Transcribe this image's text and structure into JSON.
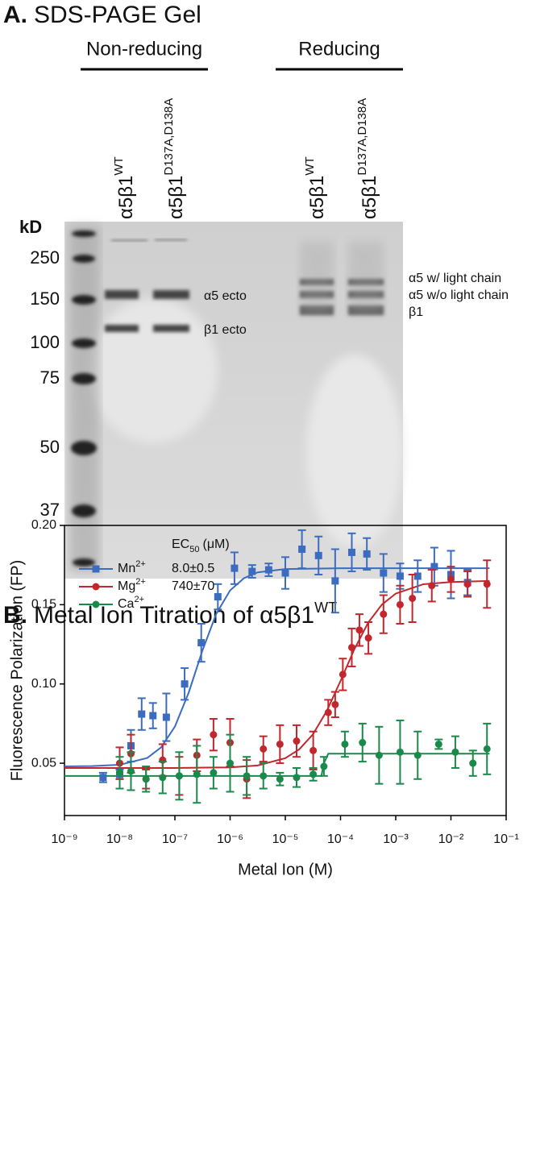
{
  "gel": {
    "panel_label": "A.",
    "title": "SDS-PAGE Gel",
    "groups": [
      "Non-reducing",
      "Reducing"
    ],
    "lanes": [
      {
        "name": "α5β1",
        "superscript": "WT"
      },
      {
        "name": "α5β1",
        "superscript": "D137A,D138A"
      },
      {
        "name": "α5β1",
        "superscript": "WT"
      },
      {
        "name": "α5β1",
        "superscript": "D137A,D138A"
      }
    ],
    "kd_label": "kD",
    "markers": [
      250,
      150,
      100,
      75,
      50,
      37
    ],
    "band_labels_left": [
      "α5 ecto",
      "β1 ecto"
    ],
    "band_labels_right": [
      "α5 w/ light chain",
      "α5 w/o light chain",
      "β1"
    ]
  },
  "chart_data": {
    "type": "scatter",
    "panel_label": "B.",
    "title": "Metal Ion Titration of α5β1",
    "title_superscript": "WT",
    "x_label": "Metal Ion (M)",
    "y_label": "Fluorescence Polarization (FP)",
    "log_x": true,
    "xlim": [
      1e-09,
      0.1
    ],
    "ylim": [
      0.017,
      0.2
    ],
    "xticks": [
      {
        "value": 1e-09,
        "label": "10⁻⁹"
      },
      {
        "value": 1e-08,
        "label": "10⁻⁸"
      },
      {
        "value": 1e-07,
        "label": "10⁻⁷"
      },
      {
        "value": 1e-06,
        "label": "10⁻⁶"
      },
      {
        "value": 1e-05,
        "label": "10⁻⁵"
      },
      {
        "value": 0.0001,
        "label": "10⁻⁴"
      },
      {
        "value": 0.001,
        "label": "10⁻³"
      },
      {
        "value": 0.01,
        "label": "10⁻²"
      },
      {
        "value": 0.1,
        "label": "10⁻¹"
      }
    ],
    "yticks": [
      0.05,
      {
        "value": 0.1,
        "label": "0.10"
      },
      0.15,
      {
        "value": 0.2,
        "label": "0.20"
      }
    ],
    "legend_title": {
      "text": "EC",
      "subscript": "50",
      "unit": "(μM)"
    },
    "series": [
      {
        "name": "Mn",
        "charge": "2+",
        "ec50": "8.0±0.5",
        "color": "#3b6cc0",
        "marker": "square",
        "x": [
          5e-09,
          1e-08,
          1.6e-08,
          2.5e-08,
          4e-08,
          7e-08,
          1.5e-07,
          3e-07,
          6e-07,
          1.2e-06,
          2.5e-06,
          5e-06,
          1e-05,
          2e-05,
          4e-05,
          8e-05,
          0.00016,
          0.0003,
          0.0006,
          0.0012,
          0.0025,
          0.005,
          0.01,
          0.02
        ],
        "values": [
          0.041,
          0.043,
          0.061,
          0.081,
          0.08,
          0.079,
          0.1,
          0.126,
          0.155,
          0.173,
          0.171,
          0.172,
          0.17,
          0.185,
          0.181,
          0.165,
          0.183,
          0.182,
          0.17,
          0.168,
          0.168,
          0.174,
          0.169,
          0.164
        ],
        "errors": [
          0.003,
          0.003,
          0.01,
          0.01,
          0.008,
          0.015,
          0.01,
          0.012,
          0.008,
          0.01,
          0.004,
          0.004,
          0.01,
          0.012,
          0.012,
          0.02,
          0.012,
          0.01,
          0.012,
          0.008,
          0.01,
          0.012,
          0.015,
          0.008
        ],
        "fit": {
          "x": [
            1e-09,
            3.16e-09,
            1e-08,
            3.16e-08,
            5.62e-08,
            1e-07,
            1.78e-07,
            3.16e-07,
            5.62e-07,
            1e-06,
            1.78e-06,
            3.16e-06,
            1e-05,
            0.0001,
            0.001,
            0.05
          ],
          "values": [
            0.048,
            0.0482,
            0.049,
            0.0533,
            0.06,
            0.0731,
            0.0946,
            0.1212,
            0.1443,
            0.159,
            0.1667,
            0.1704,
            0.1725,
            0.173,
            0.173,
            0.173
          ]
        }
      },
      {
        "name": "Mg",
        "charge": "2+",
        "ec50": "740±70",
        "color": "#c1272d",
        "marker": "circle",
        "x": [
          1e-08,
          1.6e-08,
          3e-08,
          6e-08,
          1.2e-07,
          2.5e-07,
          5e-07,
          1e-06,
          2e-06,
          4e-06,
          8e-06,
          1.6e-05,
          3.2e-05,
          6e-05,
          8e-05,
          0.00011,
          0.00016,
          0.00022,
          0.00032,
          0.0006,
          0.0012,
          0.002,
          0.0045,
          0.01,
          0.02,
          0.045
        ],
        "values": [
          0.05,
          0.056,
          0.04,
          0.052,
          0.042,
          0.055,
          0.068,
          0.063,
          0.04,
          0.059,
          0.062,
          0.064,
          0.058,
          0.082,
          0.087,
          0.106,
          0.123,
          0.134,
          0.129,
          0.144,
          0.15,
          0.154,
          0.162,
          0.166,
          0.163,
          0.163
        ],
        "errors": [
          0.01,
          0.012,
          0.006,
          0.01,
          0.012,
          0.01,
          0.01,
          0.015,
          0.012,
          0.008,
          0.012,
          0.01,
          0.012,
          0.008,
          0.008,
          0.01,
          0.012,
          0.01,
          0.01,
          0.012,
          0.012,
          0.015,
          0.01,
          0.008,
          0.008,
          0.015
        ],
        "fit": {
          "x": [
            1e-09,
            1e-07,
            1e-06,
            3.16e-06,
            1e-05,
            1.78e-05,
            3.16e-05,
            5.62e-05,
            0.0001,
            0.000178,
            0.000316,
            0.000562,
            0.001,
            0.00316,
            0.01,
            0.05
          ],
          "values": [
            0.047,
            0.047,
            0.0474,
            0.0486,
            0.0532,
            0.0587,
            0.0682,
            0.0829,
            0.1019,
            0.1219,
            0.1386,
            0.1501,
            0.157,
            0.1629,
            0.1643,
            0.165
          ]
        }
      },
      {
        "name": "Ca",
        "charge": "2+",
        "color": "#1a8a4a",
        "marker": "circle",
        "x": [
          1e-08,
          1.6e-08,
          3e-08,
          6e-08,
          1.2e-07,
          2.5e-07,
          5e-07,
          1e-06,
          2e-06,
          4e-06,
          8e-06,
          1.6e-05,
          3.2e-05,
          5e-05,
          0.00012,
          0.00025,
          0.0005,
          0.0012,
          0.0025,
          0.006,
          0.012,
          0.025,
          0.045
        ],
        "values": [
          0.044,
          0.045,
          0.04,
          0.041,
          0.042,
          0.043,
          0.044,
          0.05,
          0.042,
          0.042,
          0.04,
          0.041,
          0.043,
          0.048,
          0.062,
          0.063,
          0.055,
          0.057,
          0.055,
          0.062,
          0.057,
          0.05,
          0.059
        ],
        "errors": [
          0.01,
          0.012,
          0.008,
          0.01,
          0.015,
          0.018,
          0.01,
          0.018,
          0.012,
          0.008,
          0.004,
          0.006,
          0.004,
          0.006,
          0.008,
          0.012,
          0.018,
          0.02,
          0.015,
          0.003,
          0.01,
          0.008,
          0.016
        ],
        "fit": {
          "x": [
            1e-09,
            4.5e-05,
            5e-05,
            6e-05,
            0.05
          ],
          "values": [
            0.042,
            0.042,
            0.05,
            0.056,
            0.056
          ]
        }
      }
    ]
  }
}
